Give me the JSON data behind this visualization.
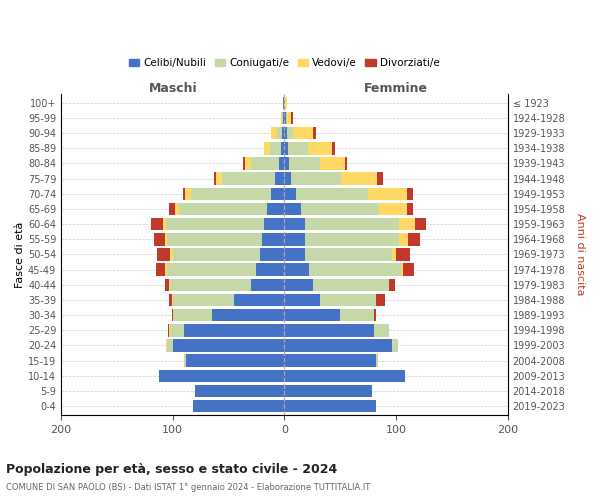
{
  "age_groups": [
    "100+",
    "95-99",
    "90-94",
    "85-89",
    "80-84",
    "75-79",
    "70-74",
    "65-69",
    "60-64",
    "55-59",
    "50-54",
    "45-49",
    "40-44",
    "35-39",
    "30-34",
    "25-29",
    "20-24",
    "15-19",
    "10-14",
    "5-9",
    "0-4"
  ],
  "birth_years": [
    "≤ 1923",
    "1924-1928",
    "1929-1933",
    "1934-1938",
    "1939-1943",
    "1944-1948",
    "1949-1953",
    "1954-1958",
    "1959-1963",
    "1964-1968",
    "1969-1973",
    "1974-1978",
    "1979-1983",
    "1984-1988",
    "1989-1993",
    "1994-1998",
    "1999-2003",
    "2004-2008",
    "2009-2013",
    "2014-2018",
    "2019-2023"
  ],
  "colors": {
    "celibi": "#4472c4",
    "coniugati": "#c5d9a8",
    "vedovi": "#ffd966",
    "divorziati": "#c0392b"
  },
  "maschi": {
    "celibi": [
      1,
      1,
      2,
      3,
      5,
      8,
      12,
      16,
      18,
      20,
      22,
      25,
      30,
      45,
      65,
      90,
      100,
      88,
      112,
      80,
      82
    ],
    "coniugati": [
      0,
      1,
      5,
      10,
      25,
      48,
      72,
      78,
      88,
      85,
      78,
      80,
      72,
      55,
      35,
      12,
      5,
      2,
      0,
      0,
      0
    ],
    "vedovi": [
      0,
      1,
      5,
      5,
      5,
      5,
      5,
      4,
      3,
      2,
      2,
      2,
      1,
      1,
      0,
      1,
      1,
      0,
      0,
      0,
      0
    ],
    "divorziati": [
      0,
      0,
      0,
      0,
      2,
      2,
      2,
      5,
      10,
      10,
      12,
      8,
      4,
      2,
      1,
      1,
      0,
      0,
      0,
      0,
      0
    ]
  },
  "femmine": {
    "celibi": [
      0,
      1,
      2,
      3,
      4,
      6,
      10,
      15,
      18,
      18,
      18,
      22,
      26,
      32,
      50,
      80,
      96,
      82,
      108,
      78,
      82
    ],
    "coniugati": [
      0,
      1,
      6,
      18,
      28,
      45,
      65,
      70,
      85,
      85,
      78,
      82,
      68,
      50,
      30,
      14,
      6,
      2,
      0,
      0,
      0
    ],
    "vedovi": [
      2,
      4,
      18,
      22,
      22,
      32,
      35,
      25,
      14,
      8,
      4,
      2,
      0,
      0,
      0,
      0,
      0,
      0,
      0,
      0,
      0
    ],
    "divorziati": [
      0,
      2,
      2,
      2,
      2,
      5,
      5,
      5,
      10,
      10,
      12,
      10,
      5,
      8,
      2,
      0,
      0,
      0,
      0,
      0,
      0
    ]
  },
  "xlim": [
    -200,
    200
  ],
  "xticks": [
    -200,
    -100,
    0,
    100,
    200
  ],
  "xticklabels": [
    "200",
    "100",
    "0",
    "100",
    "200"
  ],
  "title": "Popolazione per età, sesso e stato civile - 2024",
  "subtitle": "COMUNE DI SAN PAOLO (BS) - Dati ISTAT 1° gennaio 2024 - Elaborazione TUTTITALIA.IT",
  "ylabel_left": "Fasce di età",
  "ylabel_right": "Anni di nascita",
  "label_maschi": "Maschi",
  "label_femmine": "Femmine",
  "legend_labels": [
    "Celibi/Nubili",
    "Coniugati/e",
    "Vedovi/e",
    "Divorziati/e"
  ],
  "bg_color": "#ffffff",
  "grid_color": "#cccccc"
}
